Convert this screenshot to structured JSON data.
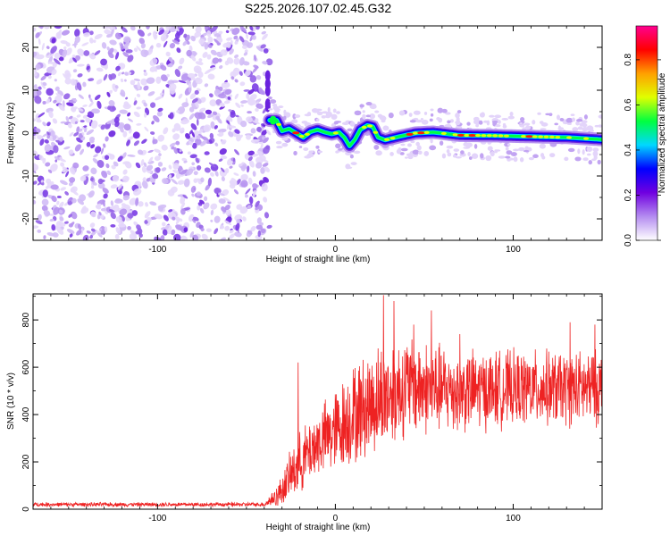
{
  "title": "S225.2026.107.02.45.G32",
  "chart_data": [
    {
      "type": "heatmap",
      "id": "spectrogram",
      "xlabel": "Height of straight line (km)",
      "ylabel": "Frequency (Hz)",
      "xlim": [
        -170,
        150
      ],
      "ylim": [
        -25,
        25
      ],
      "xticks": [
        -100,
        0,
        100
      ],
      "yticks": [
        -20,
        -10,
        0,
        10,
        20
      ],
      "xtick_labels": [
        "-100",
        "0",
        "100"
      ],
      "ytick_labels": [
        "-20",
        "-10",
        "0",
        "10",
        "20"
      ],
      "noise_region_x": [
        -170,
        -37
      ],
      "signal_region_x": [
        -37,
        150
      ],
      "signal_track": [
        {
          "x": -37,
          "f": 3.0
        },
        {
          "x": -33,
          "f": 3.0
        },
        {
          "x": -30,
          "f": 0.5
        },
        {
          "x": -26,
          "f": 1.0
        },
        {
          "x": -22,
          "f": 0.0
        },
        {
          "x": -18,
          "f": -1.0
        },
        {
          "x": -14,
          "f": 0.3
        },
        {
          "x": -10,
          "f": 0.8
        },
        {
          "x": -6,
          "f": 0.2
        },
        {
          "x": -2,
          "f": -0.2
        },
        {
          "x": 2,
          "f": 0.2
        },
        {
          "x": 5,
          "f": -1.0
        },
        {
          "x": 8,
          "f": -3.0
        },
        {
          "x": 11,
          "f": -1.5
        },
        {
          "x": 14,
          "f": 0.8
        },
        {
          "x": 18,
          "f": 1.8
        },
        {
          "x": 21,
          "f": 1.5
        },
        {
          "x": 24,
          "f": -1.0
        },
        {
          "x": 28,
          "f": -1.6
        },
        {
          "x": 32,
          "f": -1.2
        },
        {
          "x": 36,
          "f": -0.8
        },
        {
          "x": 45,
          "f": 0.0
        },
        {
          "x": 55,
          "f": 0.2
        },
        {
          "x": 70,
          "f": -0.5
        },
        {
          "x": 90,
          "f": -0.6
        },
        {
          "x": 110,
          "f": -0.8
        },
        {
          "x": 130,
          "f": -1.0
        },
        {
          "x": 150,
          "f": -1.5
        }
      ],
      "colorbar": {
        "label": "Normalized spectral amplitude",
        "range": [
          0.0,
          0.95
        ],
        "ticks": [
          0.0,
          0.2,
          0.4,
          0.6,
          0.8
        ],
        "tick_labels": [
          "0.0",
          "0.2",
          "0.4",
          "0.6",
          "0.8"
        ],
        "colors": [
          "#ffffff",
          "#b48cf0",
          "#7000e0",
          "#0000ff",
          "#00d8ff",
          "#00ff40",
          "#e0ff00",
          "#ffa000",
          "#ff0000",
          "#ff0090"
        ]
      }
    },
    {
      "type": "line",
      "id": "snr",
      "xlabel": "Height of straight line (km)",
      "ylabel": "SNR (10 * v/v)",
      "xlim": [
        -170,
        150
      ],
      "ylim": [
        0,
        910
      ],
      "xticks": [
        -100,
        0,
        100
      ],
      "yticks": [
        0,
        200,
        400,
        600,
        800
      ],
      "xtick_labels": [
        "-100",
        "0",
        "100"
      ],
      "ytick_labels": [
        "0",
        "200",
        "400",
        "600",
        "800"
      ],
      "color": "#ee2222",
      "series": [
        {
          "name": "SNR",
          "segments": [
            {
              "x": -170,
              "mean": 20,
              "spread": 10
            },
            {
              "x": -40,
              "mean": 20,
              "spread": 10
            },
            {
              "x": -32,
              "mean": 60,
              "spread": 60
            },
            {
              "x": -22,
              "mean": 180,
              "spread": 140
            },
            {
              "x": -10,
              "mean": 280,
              "spread": 160
            },
            {
              "x": 0,
              "mean": 330,
              "spread": 200
            },
            {
              "x": 10,
              "mean": 400,
              "spread": 240
            },
            {
              "x": 25,
              "mean": 470,
              "spread": 260
            },
            {
              "x": 40,
              "mean": 520,
              "spread": 240
            },
            {
              "x": 70,
              "mean": 500,
              "spread": 200
            },
            {
              "x": 100,
              "mean": 510,
              "spread": 180
            },
            {
              "x": 150,
              "mean": 510,
              "spread": 180
            }
          ],
          "peaks": [
            {
              "x": -21,
              "y": 620
            },
            {
              "x": 27,
              "y": 905
            },
            {
              "x": 33,
              "y": 880
            },
            {
              "x": 44,
              "y": 780
            },
            {
              "x": 54,
              "y": 840
            },
            {
              "x": 70,
              "y": 740
            },
            {
              "x": 132,
              "y": 790
            },
            {
              "x": 146,
              "y": 780
            }
          ]
        }
      ]
    }
  ]
}
